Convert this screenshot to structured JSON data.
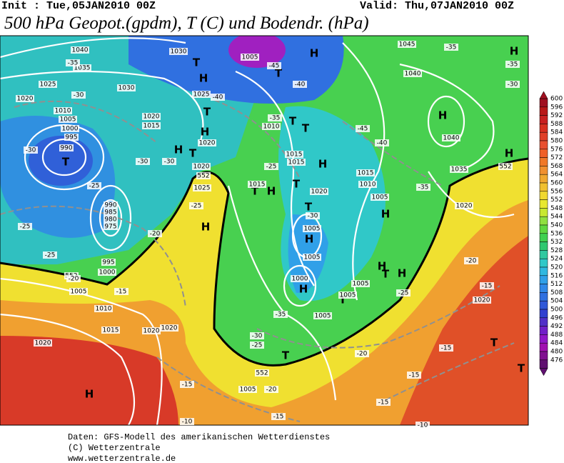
{
  "header": {
    "init": "Init : Tue,05JAN2010 00Z",
    "valid": "Valid: Thu,07JAN2010 00Z",
    "title": "500 hPa Geopot.(gpdm), T (C) und Bodendr. (hPa)"
  },
  "legend": {
    "levels": [
      600,
      596,
      592,
      588,
      584,
      580,
      576,
      572,
      568,
      564,
      560,
      556,
      552,
      548,
      544,
      540,
      536,
      532,
      528,
      524,
      520,
      516,
      512,
      508,
      504,
      500,
      496,
      492,
      488,
      484,
      480,
      476
    ],
    "colors": [
      "#a01020",
      "#b81818",
      "#c82020",
      "#d83020",
      "#e04028",
      "#e85030",
      "#f06028",
      "#f07828",
      "#f09030",
      "#f0a830",
      "#f0c030",
      "#f0d830",
      "#e8e830",
      "#c8e830",
      "#90e040",
      "#60d840",
      "#40d050",
      "#30c870",
      "#30c8a0",
      "#30c8c8",
      "#30b8e0",
      "#30a0e8",
      "#3088e8",
      "#3070e0",
      "#3058d8",
      "#3040d0",
      "#5030c8",
      "#7020c8",
      "#9018c8",
      "#a010b0",
      "#801090",
      "#601070"
    ]
  },
  "map_labels": [
    "H",
    "H",
    "H",
    "H",
    "H",
    "H",
    "H",
    "H",
    "H",
    "H",
    "H",
    "H",
    "H",
    "H",
    "H",
    "H",
    "T",
    "T",
    "T",
    "T",
    "T",
    "T",
    "T",
    "T",
    "T",
    "T",
    "T",
    "T",
    "T",
    "T",
    "T",
    "1040",
    "1030",
    "1005",
    "1045",
    "1035",
    "1040",
    "1025",
    "1030",
    "1025",
    "1020",
    "1010",
    "1005",
    "1020",
    "1015",
    "1010",
    "1000",
    "995",
    "1040",
    "1020",
    "990",
    "1015",
    "1015",
    "1020",
    "1035",
    "1025",
    "1015",
    "1015",
    "1010",
    "1020",
    "1005",
    "1020",
    "990",
    "985",
    "980",
    "975",
    "1005",
    "1005",
    "995",
    "1000",
    "1000",
    "1005",
    "1005",
    "1005",
    "1010",
    "1005",
    "1020",
    "1020",
    "1020",
    "1015",
    "1020",
    "1005",
    "552",
    "552",
    "552",
    "552",
    "-35",
    "-30",
    "-45",
    "-40",
    "-40",
    "-35",
    "-35",
    "-30",
    "-45",
    "-35",
    "-40",
    "-30",
    "-30",
    "-30",
    "-25",
    "-25",
    "-20",
    "-25",
    "-25",
    "-20",
    "-15",
    "-25",
    "-35",
    "-30",
    "-35",
    "-30",
    "-25",
    "-20",
    "-25",
    "-20",
    "-15",
    "-15",
    "-15",
    "-20",
    "-15",
    "-15",
    "-10",
    "-10",
    "-15"
  ],
  "footer": [
    "Daten: GFS-Modell des amerikanischen Wetterdienstes",
    "(C) Wetterzentrale",
    "www.wetterzentrale.de"
  ]
}
